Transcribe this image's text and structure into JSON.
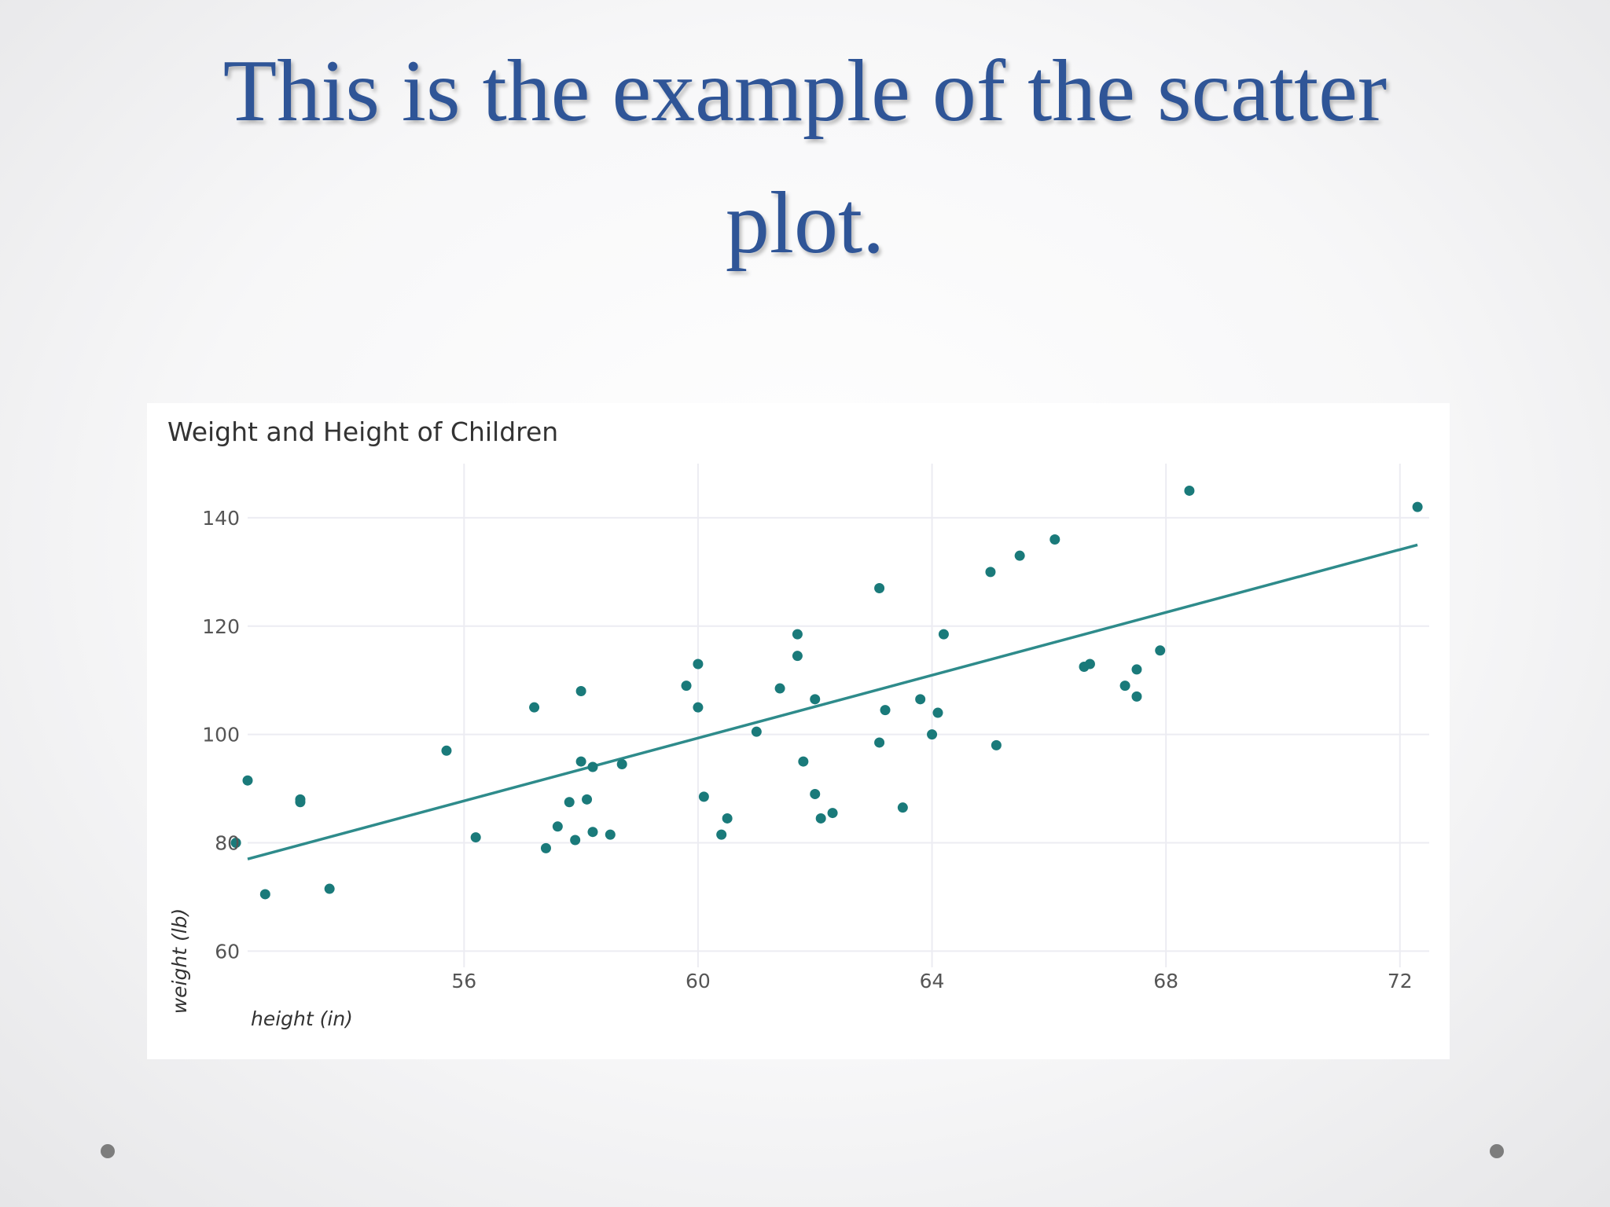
{
  "slide": {
    "title_line1": "This is the example of the scatter",
    "title_line2": "plot."
  },
  "colors": {
    "title": "#2f5597",
    "point": "#1a7a7a",
    "trendline": "#2e8b8b",
    "bullet": "#7d7d7d"
  },
  "chart_data": {
    "type": "scatter",
    "title": "Weight and Height of Children",
    "xlabel": "height (in)",
    "ylabel": "weight (lb)",
    "xlim": [
      52.3,
      72.5
    ],
    "ylim": [
      57,
      150
    ],
    "xticks": [
      56,
      60,
      64,
      68,
      72
    ],
    "yticks": [
      60,
      80,
      100,
      120,
      140
    ],
    "grid": true,
    "points": [
      {
        "x": 52.1,
        "y": 80
      },
      {
        "x": 52.3,
        "y": 91.5
      },
      {
        "x": 52.6,
        "y": 70.5
      },
      {
        "x": 53.2,
        "y": 88
      },
      {
        "x": 53.2,
        "y": 87.5
      },
      {
        "x": 53.7,
        "y": 71.5
      },
      {
        "x": 55.7,
        "y": 97
      },
      {
        "x": 56.2,
        "y": 81
      },
      {
        "x": 57.2,
        "y": 105
      },
      {
        "x": 57.4,
        "y": 79
      },
      {
        "x": 57.6,
        "y": 83
      },
      {
        "x": 57.8,
        "y": 87.5
      },
      {
        "x": 57.9,
        "y": 80.5
      },
      {
        "x": 58.0,
        "y": 108
      },
      {
        "x": 58.0,
        "y": 95
      },
      {
        "x": 58.1,
        "y": 88
      },
      {
        "x": 58.2,
        "y": 94
      },
      {
        "x": 58.2,
        "y": 82
      },
      {
        "x": 58.5,
        "y": 81.5
      },
      {
        "x": 58.7,
        "y": 94.5
      },
      {
        "x": 59.8,
        "y": 109
      },
      {
        "x": 60.0,
        "y": 113
      },
      {
        "x": 60.0,
        "y": 105
      },
      {
        "x": 60.1,
        "y": 88.5
      },
      {
        "x": 60.4,
        "y": 81.5
      },
      {
        "x": 60.5,
        "y": 84.5
      },
      {
        "x": 61.0,
        "y": 100.5
      },
      {
        "x": 61.4,
        "y": 108.5
      },
      {
        "x": 61.7,
        "y": 118.5
      },
      {
        "x": 61.7,
        "y": 114.5
      },
      {
        "x": 61.8,
        "y": 95
      },
      {
        "x": 62.0,
        "y": 106.5
      },
      {
        "x": 62.0,
        "y": 89
      },
      {
        "x": 62.1,
        "y": 84.5
      },
      {
        "x": 62.3,
        "y": 85.5
      },
      {
        "x": 63.1,
        "y": 127
      },
      {
        "x": 63.1,
        "y": 98.5
      },
      {
        "x": 63.2,
        "y": 104.5
      },
      {
        "x": 63.5,
        "y": 86.5
      },
      {
        "x": 63.8,
        "y": 106.5
      },
      {
        "x": 64.0,
        "y": 100
      },
      {
        "x": 64.1,
        "y": 104
      },
      {
        "x": 64.2,
        "y": 118.5
      },
      {
        "x": 65.0,
        "y": 130
      },
      {
        "x": 65.1,
        "y": 98
      },
      {
        "x": 65.5,
        "y": 133
      },
      {
        "x": 66.1,
        "y": 136
      },
      {
        "x": 66.6,
        "y": 112.5
      },
      {
        "x": 66.7,
        "y": 113
      },
      {
        "x": 67.3,
        "y": 109
      },
      {
        "x": 67.5,
        "y": 112
      },
      {
        "x": 67.5,
        "y": 107
      },
      {
        "x": 67.9,
        "y": 115.5
      },
      {
        "x": 68.4,
        "y": 145
      },
      {
        "x": 72.3,
        "y": 142
      }
    ],
    "trendline": {
      "x": [
        52.3,
        72.3
      ],
      "y": [
        77,
        135
      ]
    }
  }
}
